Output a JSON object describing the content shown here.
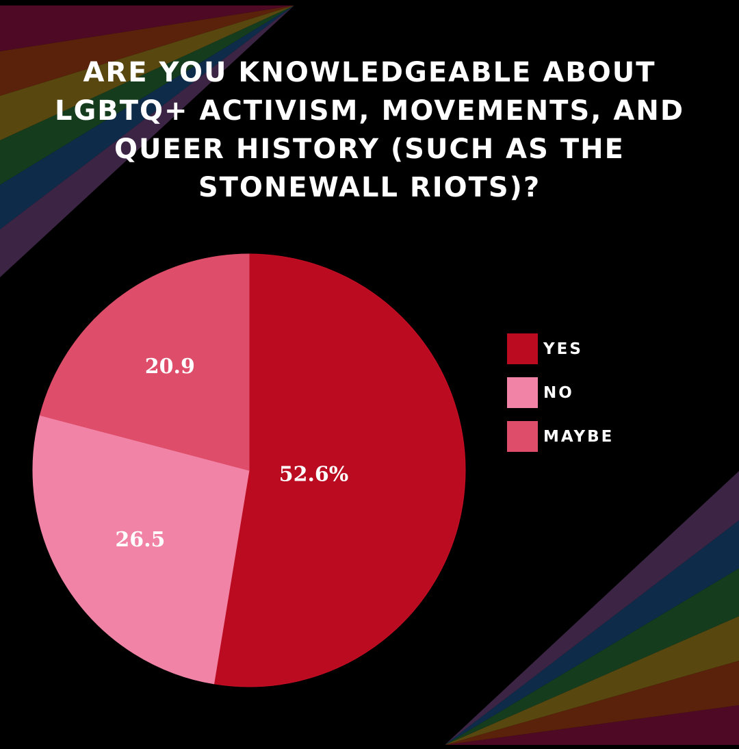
{
  "chart_data": {
    "type": "pie",
    "title": "ARE YOU KNOWLEDGEABLE ABOUT LGBTQ+ ACTIVISM, MOVEMENTS, AND QUEER HISTORY (SUCH AS THE STONEWALL RIOTS)?",
    "categories": [
      "YES",
      "NO",
      "MAYBE"
    ],
    "values": [
      52.6,
      26.5,
      20.9
    ],
    "value_labels": [
      "52.6%",
      "26.5",
      "20.9"
    ],
    "colors": [
      "#bb0b20",
      "#f083a6",
      "#de4d69"
    ],
    "start_angle_deg": 0,
    "direction": "clockwise",
    "legend_position": "right"
  },
  "theme": {
    "background": "#000000",
    "text_color": "#ffffff",
    "slice_border": "#c70f24",
    "rainbow": [
      "#4e0a24",
      "#5a220b",
      "#58470f",
      "#163c1e",
      "#0e2b4a",
      "#3c2544"
    ]
  }
}
